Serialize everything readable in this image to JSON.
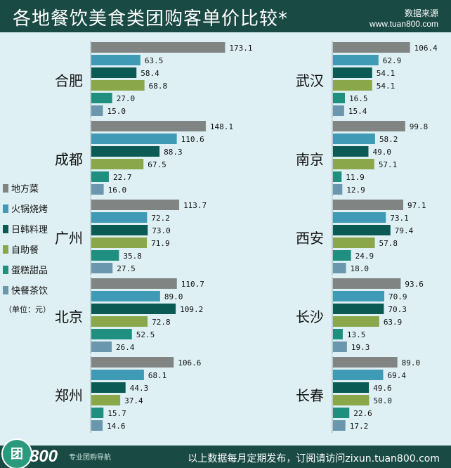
{
  "header": {
    "title": "各地餐饮美食类团购客单价比较*",
    "source_line1": "数据来源",
    "source_line2": "www.tuan800.com"
  },
  "footer": {
    "logo_mark": "团",
    "logo_number": "800",
    "logo_subtitle": "专业团购导航",
    "text": "以上数据每月定期发布，订阅请访问zixun.tuan800.com"
  },
  "legend": {
    "unit": "（单位：元）"
  },
  "colors": {
    "header_bg": "#1a4a44",
    "panel_bg": "#dff0f4",
    "series": [
      "#808584",
      "#3f9bb5",
      "#0b5b54",
      "#8aa84a",
      "#1f9080",
      "#6a97ad"
    ]
  },
  "chart_data": {
    "type": "bar",
    "orientation": "horizontal",
    "title": "各地餐饮美食类团购客单价比较*",
    "series_names": [
      "地方菜",
      "火锅烧烤",
      "日韩料理",
      "自助餐",
      "蛋糕甜品",
      "快餐茶饮"
    ],
    "panels": [
      {
        "cities": [
          {
            "name": "合肥",
            "values": [
              173.1,
              63.5,
              58.4,
              68.8,
              27.0,
              15.0
            ]
          },
          {
            "name": "成都",
            "values": [
              148.1,
              110.6,
              88.3,
              67.5,
              22.7,
              16.0
            ]
          },
          {
            "name": "广州",
            "values": [
              113.7,
              72.2,
              73.0,
              71.9,
              35.8,
              27.5
            ]
          },
          {
            "name": "北京",
            "values": [
              110.7,
              89.0,
              109.2,
              72.8,
              52.5,
              26.4
            ]
          },
          {
            "name": "郑州",
            "values": [
              106.6,
              68.1,
              44.3,
              37.4,
              15.7,
              14.6
            ]
          }
        ]
      },
      {
        "cities": [
          {
            "name": "武汉",
            "values": [
              106.4,
              62.9,
              54.1,
              54.1,
              16.5,
              15.4
            ]
          },
          {
            "name": "南京",
            "values": [
              99.8,
              58.2,
              49.0,
              57.1,
              11.9,
              12.9
            ]
          },
          {
            "name": "西安",
            "values": [
              97.1,
              73.1,
              79.4,
              57.8,
              24.9,
              18.0
            ]
          },
          {
            "name": "长沙",
            "values": [
              93.6,
              70.9,
              70.3,
              63.9,
              13.5,
              19.3
            ]
          },
          {
            "name": "长春",
            "values": [
              89.0,
              69.4,
              49.6,
              50.0,
              22.6,
              17.2
            ]
          }
        ]
      }
    ]
  }
}
